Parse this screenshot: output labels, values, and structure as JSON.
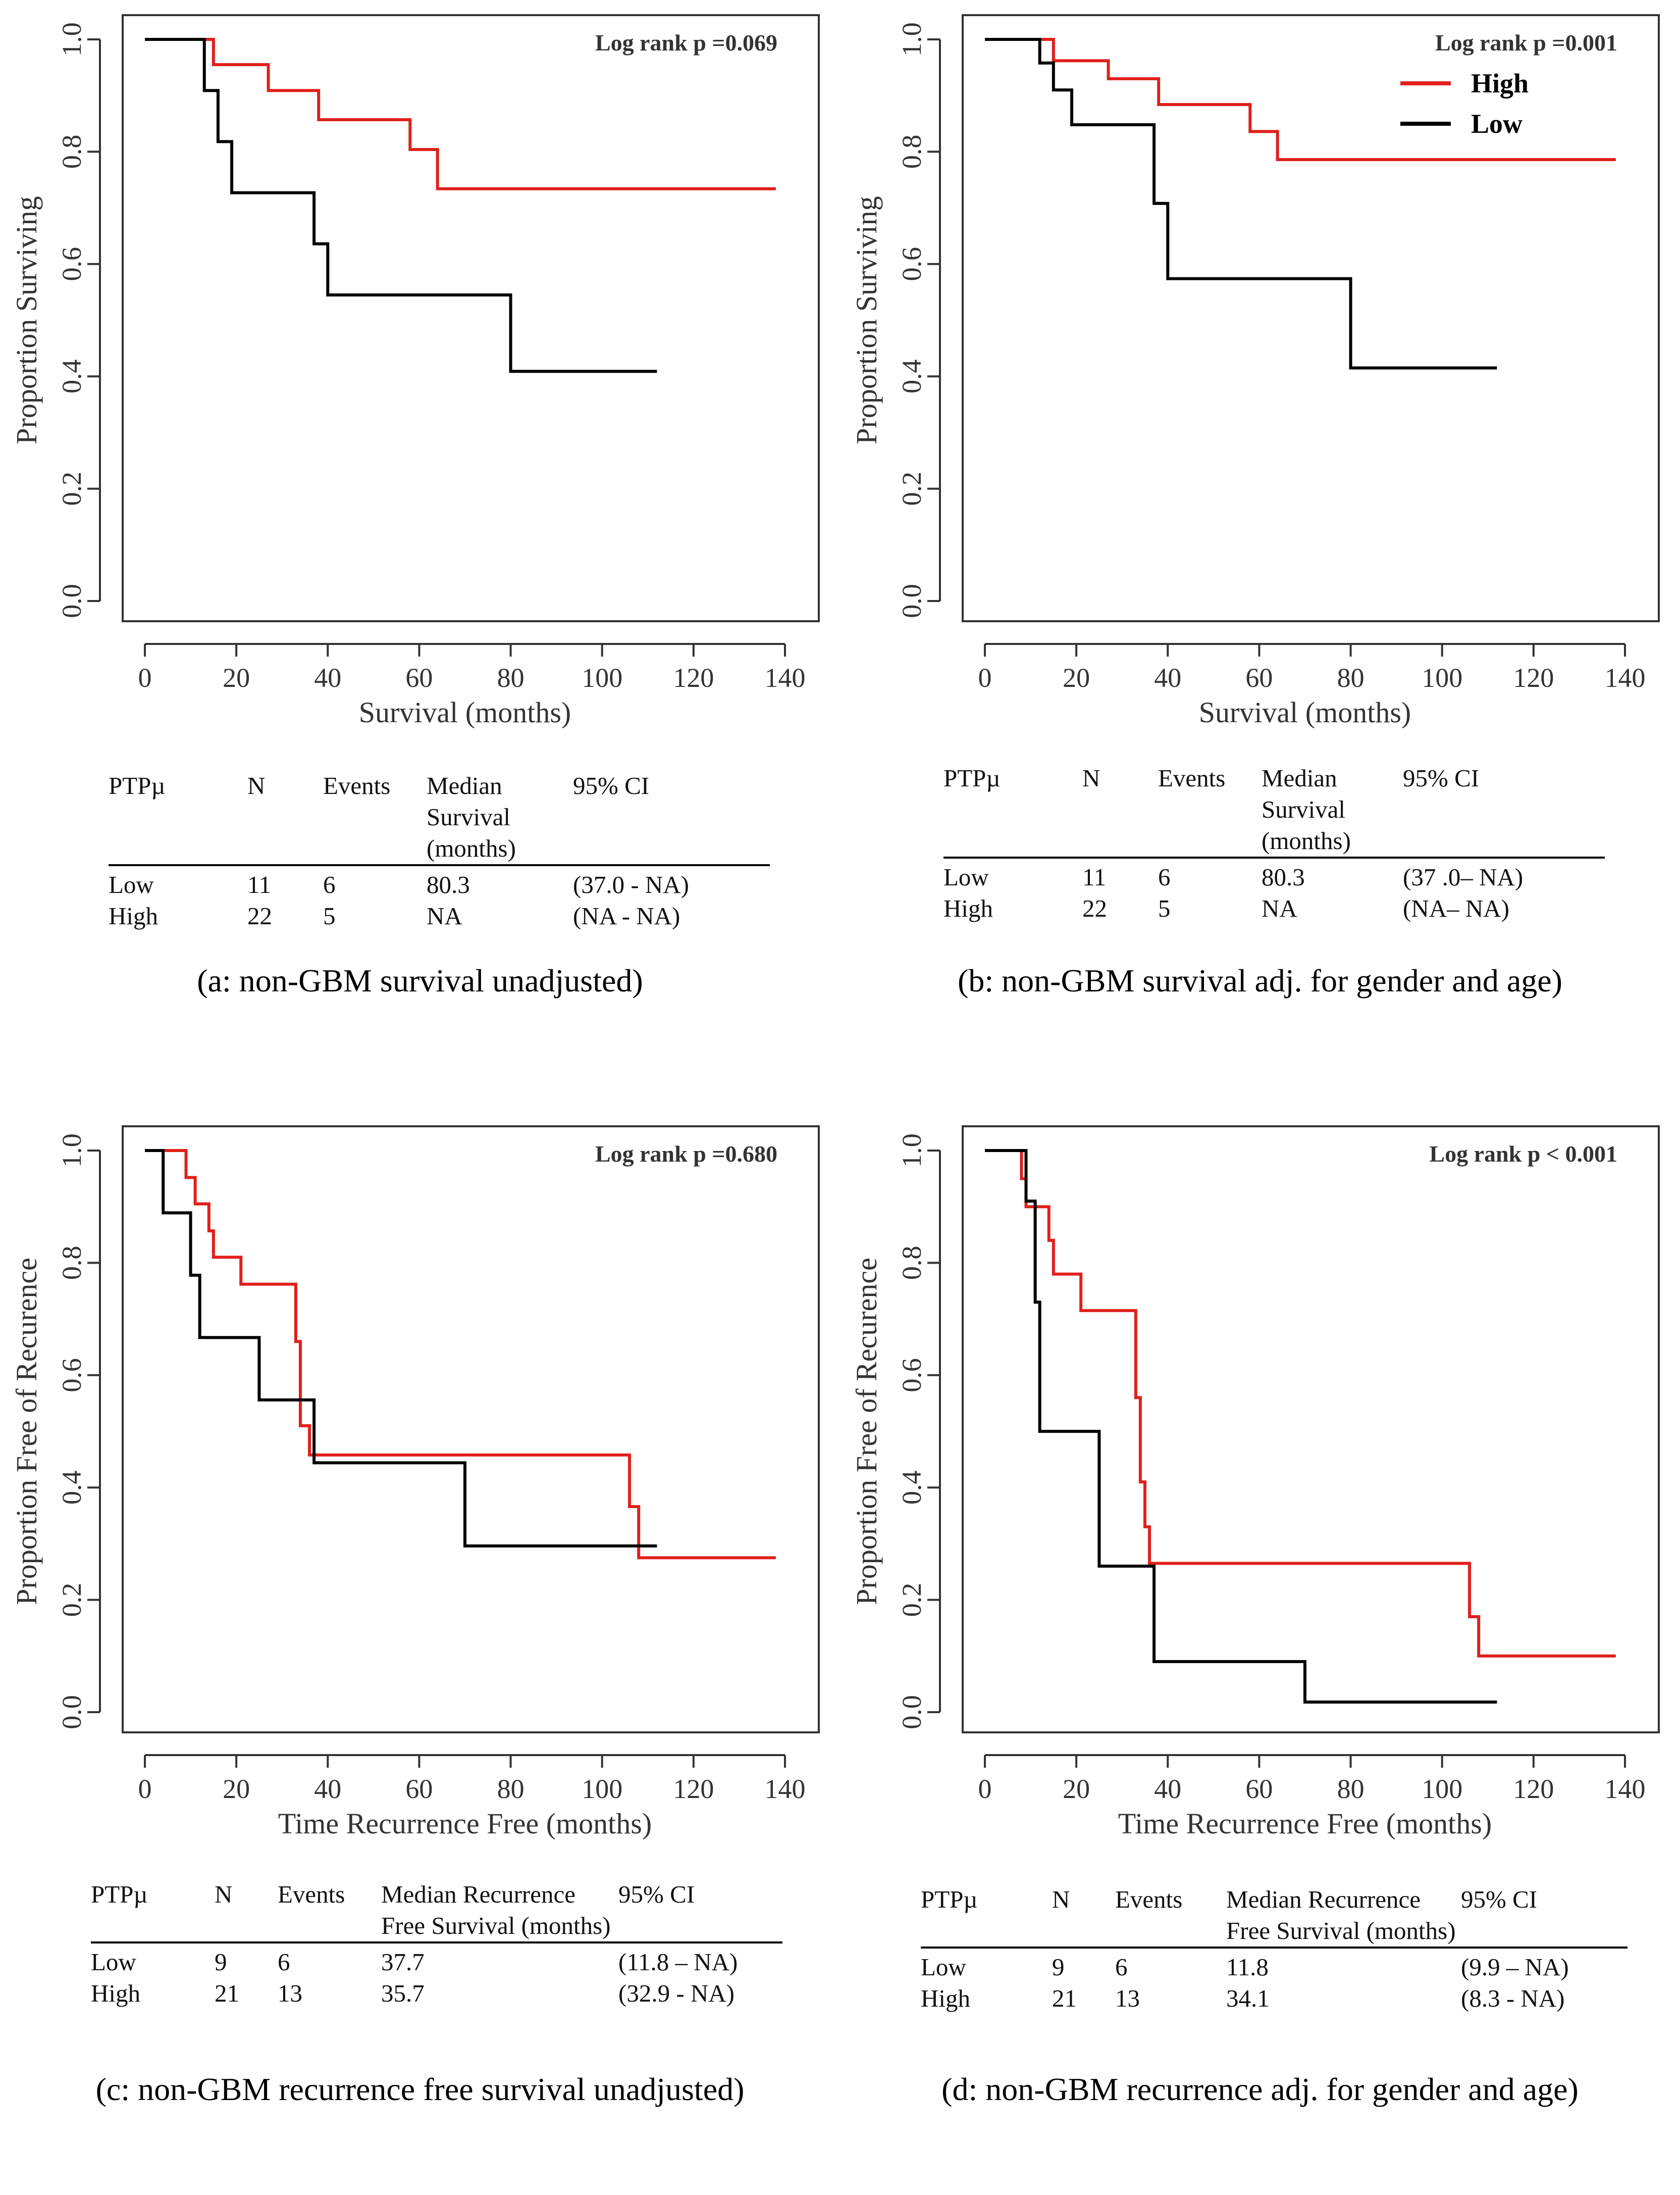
{
  "colors": {
    "high": "#e0201b",
    "low": "#000000",
    "axis": "#333333"
  },
  "legend": {
    "high_label": "High",
    "low_label": "Low"
  },
  "chart_data": [
    {
      "id": "a",
      "type": "line",
      "step": true,
      "xlabel": "Survival (months)",
      "ylabel": "Proportion Surviving",
      "xlim": [
        0,
        140
      ],
      "ylim": [
        0,
        1.0
      ],
      "xticks": [
        "0",
        "20",
        "40",
        "60",
        "80",
        "100",
        "120",
        "140"
      ],
      "yticks": [
        "0.0",
        "0.2",
        "0.4",
        "0.6",
        "0.8",
        "1.0"
      ],
      "annotation": "Log rank p =0.069",
      "show_legend": false,
      "series": [
        {
          "name": "High",
          "x": [
            0,
            15,
            27,
            38,
            58,
            64,
            138
          ],
          "y": [
            1.0,
            0.955,
            0.909,
            0.857,
            0.804,
            0.734,
            0.734
          ]
        },
        {
          "name": "Low",
          "x": [
            0,
            13,
            16,
            19,
            37,
            40,
            80,
            112
          ],
          "y": [
            1.0,
            0.909,
            0.818,
            0.727,
            0.636,
            0.545,
            0.409,
            0.409
          ]
        }
      ]
    },
    {
      "id": "b",
      "type": "line",
      "step": true,
      "xlabel": "Survival (months)",
      "ylabel": "Proportion Surviving",
      "xlim": [
        0,
        140
      ],
      "ylim": [
        0,
        1.0
      ],
      "xticks": [
        "0",
        "20",
        "40",
        "60",
        "80",
        "100",
        "120",
        "140"
      ],
      "yticks": [
        "0.0",
        "0.2",
        "0.4",
        "0.6",
        "0.8",
        "1.0"
      ],
      "annotation": "Log rank p =0.001",
      "show_legend": true,
      "series": [
        {
          "name": "High",
          "x": [
            0,
            15,
            27,
            38,
            58,
            64,
            138
          ],
          "y": [
            1.0,
            0.962,
            0.93,
            0.884,
            0.836,
            0.786,
            0.786
          ]
        },
        {
          "name": "Low",
          "x": [
            0,
            12,
            15,
            19,
            37,
            40,
            80,
            112
          ],
          "y": [
            1.0,
            0.958,
            0.91,
            0.848,
            0.708,
            0.574,
            0.415,
            0.415
          ]
        }
      ]
    },
    {
      "id": "c",
      "type": "line",
      "step": true,
      "xlabel": "Time Recurrence Free (months)",
      "ylabel": "Proportion Free of Recurence",
      "xlim": [
        0,
        140
      ],
      "ylim": [
        0,
        1.0
      ],
      "xticks": [
        "0",
        "20",
        "40",
        "60",
        "80",
        "100",
        "120",
        "140"
      ],
      "yticks": [
        "0.0",
        "0.2",
        "0.4",
        "0.6",
        "0.8",
        "1.0"
      ],
      "annotation": "Log rank p =0.680",
      "show_legend": false,
      "series": [
        {
          "name": "High",
          "x": [
            0,
            9,
            11,
            14,
            15,
            21,
            33,
            34,
            36,
            37,
            106,
            108,
            138
          ],
          "y": [
            1.0,
            0.952,
            0.905,
            0.857,
            0.81,
            0.762,
            0.66,
            0.51,
            0.458,
            0.458,
            0.366,
            0.275,
            0.275
          ]
        },
        {
          "name": "Low",
          "x": [
            0,
            4,
            10,
            12,
            25,
            37,
            70,
            112
          ],
          "y": [
            1.0,
            0.889,
            0.778,
            0.667,
            0.556,
            0.444,
            0.296,
            0.296
          ]
        }
      ]
    },
    {
      "id": "d",
      "type": "line",
      "step": true,
      "xlabel": "Time Recurrence Free (months)",
      "ylabel": "Proportion Free of Recurence",
      "xlim": [
        0,
        140
      ],
      "ylim": [
        0,
        1.0
      ],
      "xticks": [
        "0",
        "20",
        "40",
        "60",
        "80",
        "100",
        "120",
        "140"
      ],
      "yticks": [
        "0.0",
        "0.2",
        "0.4",
        "0.6",
        "0.8",
        "1.0"
      ],
      "annotation": "Log rank p <  0.001",
      "show_legend": false,
      "series": [
        {
          "name": "High",
          "x": [
            0,
            8,
            9,
            11,
            14,
            15,
            21,
            33,
            34,
            35,
            36,
            37,
            106,
            108,
            138
          ],
          "y": [
            1.0,
            0.95,
            0.9,
            0.9,
            0.84,
            0.78,
            0.715,
            0.56,
            0.41,
            0.33,
            0.265,
            0.265,
            0.17,
            0.1,
            0.1
          ]
        },
        {
          "name": "Low",
          "x": [
            0,
            9,
            11,
            12,
            25,
            37,
            70,
            112
          ],
          "y": [
            1.0,
            0.91,
            0.73,
            0.5,
            0.26,
            0.09,
            0.018,
            0.018
          ]
        }
      ]
    }
  ],
  "tables": [
    {
      "headers": [
        "PTPµ",
        "N",
        "Events",
        "Median Survival (months)",
        "95% CI"
      ],
      "rows": [
        [
          "Low",
          "11",
          "6",
          "80.3",
          "(37.0 - NA)"
        ],
        [
          "High",
          "22",
          "5",
          "NA",
          "(NA - NA)"
        ]
      ]
    },
    {
      "headers": [
        "PTPµ",
        "N",
        "Events",
        "Median Survival (months)",
        "95% CI"
      ],
      "rows": [
        [
          "Low",
          "11",
          "6",
          "80.3",
          "(37 .0– NA)"
        ],
        [
          "High",
          "22",
          "5",
          "NA",
          "(NA– NA)"
        ]
      ]
    },
    {
      "headers": [
        "PTPµ",
        "N",
        "Events",
        "Median Recurrence Free Survival (months)",
        "95% CI"
      ],
      "rows": [
        [
          "Low",
          "9",
          "6",
          "37.7",
          "(11.8 – NA)"
        ],
        [
          "High",
          "21",
          "13",
          "35.7",
          "(32.9 - NA)"
        ]
      ]
    },
    {
      "headers": [
        "PTPµ",
        "N",
        "Events",
        "Median Recurrence Free Survival (months)",
        "95% CI"
      ],
      "rows": [
        [
          "Low",
          "9",
          "6",
          "11.8",
          "(9.9 – NA)"
        ],
        [
          "High",
          "21",
          "13",
          "34.1",
          "(8.3 - NA)"
        ]
      ]
    }
  ],
  "captions": [
    "(a: non-GBM survival unadjusted)",
    "(b: non-GBM survival adj. for gender and age)",
    "(c: non-GBM recurrence free survival unadjusted)",
    "(d: non-GBM recurrence adj. for gender and age)"
  ]
}
